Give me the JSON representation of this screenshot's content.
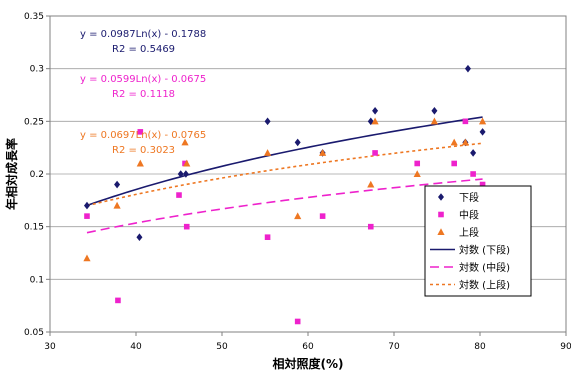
{
  "chart_data": {
    "type": "scatter",
    "title": "",
    "xlabel": "相対照度(%)",
    "ylabel": "年相対成長率",
    "xlim": [
      30,
      90
    ],
    "ylim": [
      0.05,
      0.35
    ],
    "x_ticks": [
      30,
      40,
      50,
      60,
      70,
      80,
      90
    ],
    "y_ticks": [
      0.05,
      0.1,
      0.15,
      0.2,
      0.25,
      0.3,
      0.35
    ],
    "x_tick_labels": [
      "30",
      "40",
      "50",
      "60",
      "70",
      "80",
      "90"
    ],
    "y_tick_labels": [
      "0.05",
      "0.1",
      "0.15",
      "0.2",
      "0.25",
      "0.3",
      "0.35"
    ],
    "grid": "horizontal",
    "legend_position": "right",
    "series": [
      {
        "name": "下段",
        "marker": "diamond",
        "color": "#1a1a6e",
        "points": [
          [
            34.3,
            0.17
          ],
          [
            37.8,
            0.19
          ],
          [
            40.4,
            0.14
          ],
          [
            45.2,
            0.2
          ],
          [
            45.8,
            0.2
          ],
          [
            55.3,
            0.25
          ],
          [
            58.8,
            0.23
          ],
          [
            61.7,
            0.22
          ],
          [
            67.3,
            0.25
          ],
          [
            67.8,
            0.26
          ],
          [
            74.7,
            0.26
          ],
          [
            78.3,
            0.23
          ],
          [
            78.6,
            0.3
          ],
          [
            79.2,
            0.22
          ],
          [
            80.3,
            0.24
          ]
        ]
      },
      {
        "name": "中段",
        "marker": "square",
        "color": "#ee22cc",
        "points": [
          [
            34.3,
            0.16
          ],
          [
            37.9,
            0.08
          ],
          [
            40.5,
            0.24
          ],
          [
            45.0,
            0.18
          ],
          [
            45.7,
            0.21
          ],
          [
            45.9,
            0.15
          ],
          [
            55.3,
            0.14
          ],
          [
            58.8,
            0.06
          ],
          [
            61.7,
            0.16
          ],
          [
            67.3,
            0.15
          ],
          [
            67.8,
            0.22
          ],
          [
            72.7,
            0.21
          ],
          [
            77.0,
            0.21
          ],
          [
            78.3,
            0.25
          ],
          [
            79.2,
            0.2
          ],
          [
            80.3,
            0.19
          ]
        ]
      },
      {
        "name": "上段",
        "marker": "triangle",
        "color": "#ee7722",
        "points": [
          [
            34.3,
            0.12
          ],
          [
            37.8,
            0.17
          ],
          [
            40.5,
            0.21
          ],
          [
            45.7,
            0.23
          ],
          [
            45.9,
            0.21
          ],
          [
            55.3,
            0.22
          ],
          [
            58.8,
            0.16
          ],
          [
            61.7,
            0.22
          ],
          [
            67.3,
            0.19
          ],
          [
            67.8,
            0.25
          ],
          [
            72.7,
            0.2
          ],
          [
            74.7,
            0.25
          ],
          [
            77.0,
            0.23
          ],
          [
            78.3,
            0.23
          ],
          [
            80.3,
            0.25
          ]
        ]
      }
    ],
    "trendlines": [
      {
        "name": "対数 (下段)",
        "color": "#1a1a6e",
        "style": "solid",
        "a": 0.0987,
        "b": -0.1788,
        "x_range": [
          34.3,
          80.3
        ]
      },
      {
        "name": "対数 (中段)",
        "color": "#ee22cc",
        "style": "dashed",
        "a": 0.0599,
        "b": -0.0675,
        "x_range": [
          34.3,
          80.3
        ]
      },
      {
        "name": "対数 (上段)",
        "color": "#ee7722",
        "style": "dotted",
        "a": 0.0697,
        "b": -0.0765,
        "x_range": [
          34.3,
          80.3
        ]
      }
    ],
    "annotations": [
      {
        "equation": "y = 0.0987Ln(x) - 0.1788",
        "r2_label": "R",
        "r2_value": "2 = 0.5469",
        "color": "#1a1a6e"
      },
      {
        "equation": "y = 0.0599Ln(x) - 0.0675",
        "r2_label": "R",
        "r2_value": "2 = 0.1118",
        "color": "#ee22cc"
      },
      {
        "equation": "y = 0.0697Ln(x) - 0.0765",
        "r2_label": "R",
        "r2_value": "2 = 0.3023",
        "color": "#ee7722"
      }
    ],
    "legend": [
      "下段",
      "中段",
      "上段",
      "対数 (下段)",
      "対数 (中段)",
      "対数 (上段)"
    ]
  }
}
